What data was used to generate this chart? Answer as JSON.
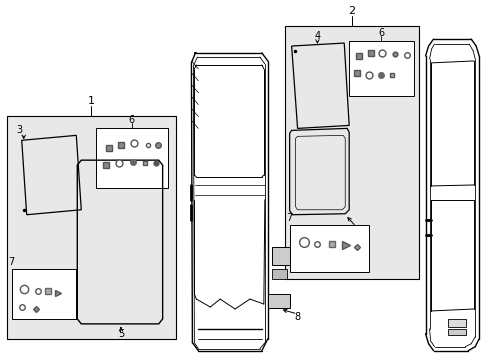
{
  "background_color": "#ffffff",
  "fig_width": 4.89,
  "fig_height": 3.6,
  "dpi": 100,
  "box_fill": "#e8e8e8",
  "box2_fill": "#e0e0e0"
}
